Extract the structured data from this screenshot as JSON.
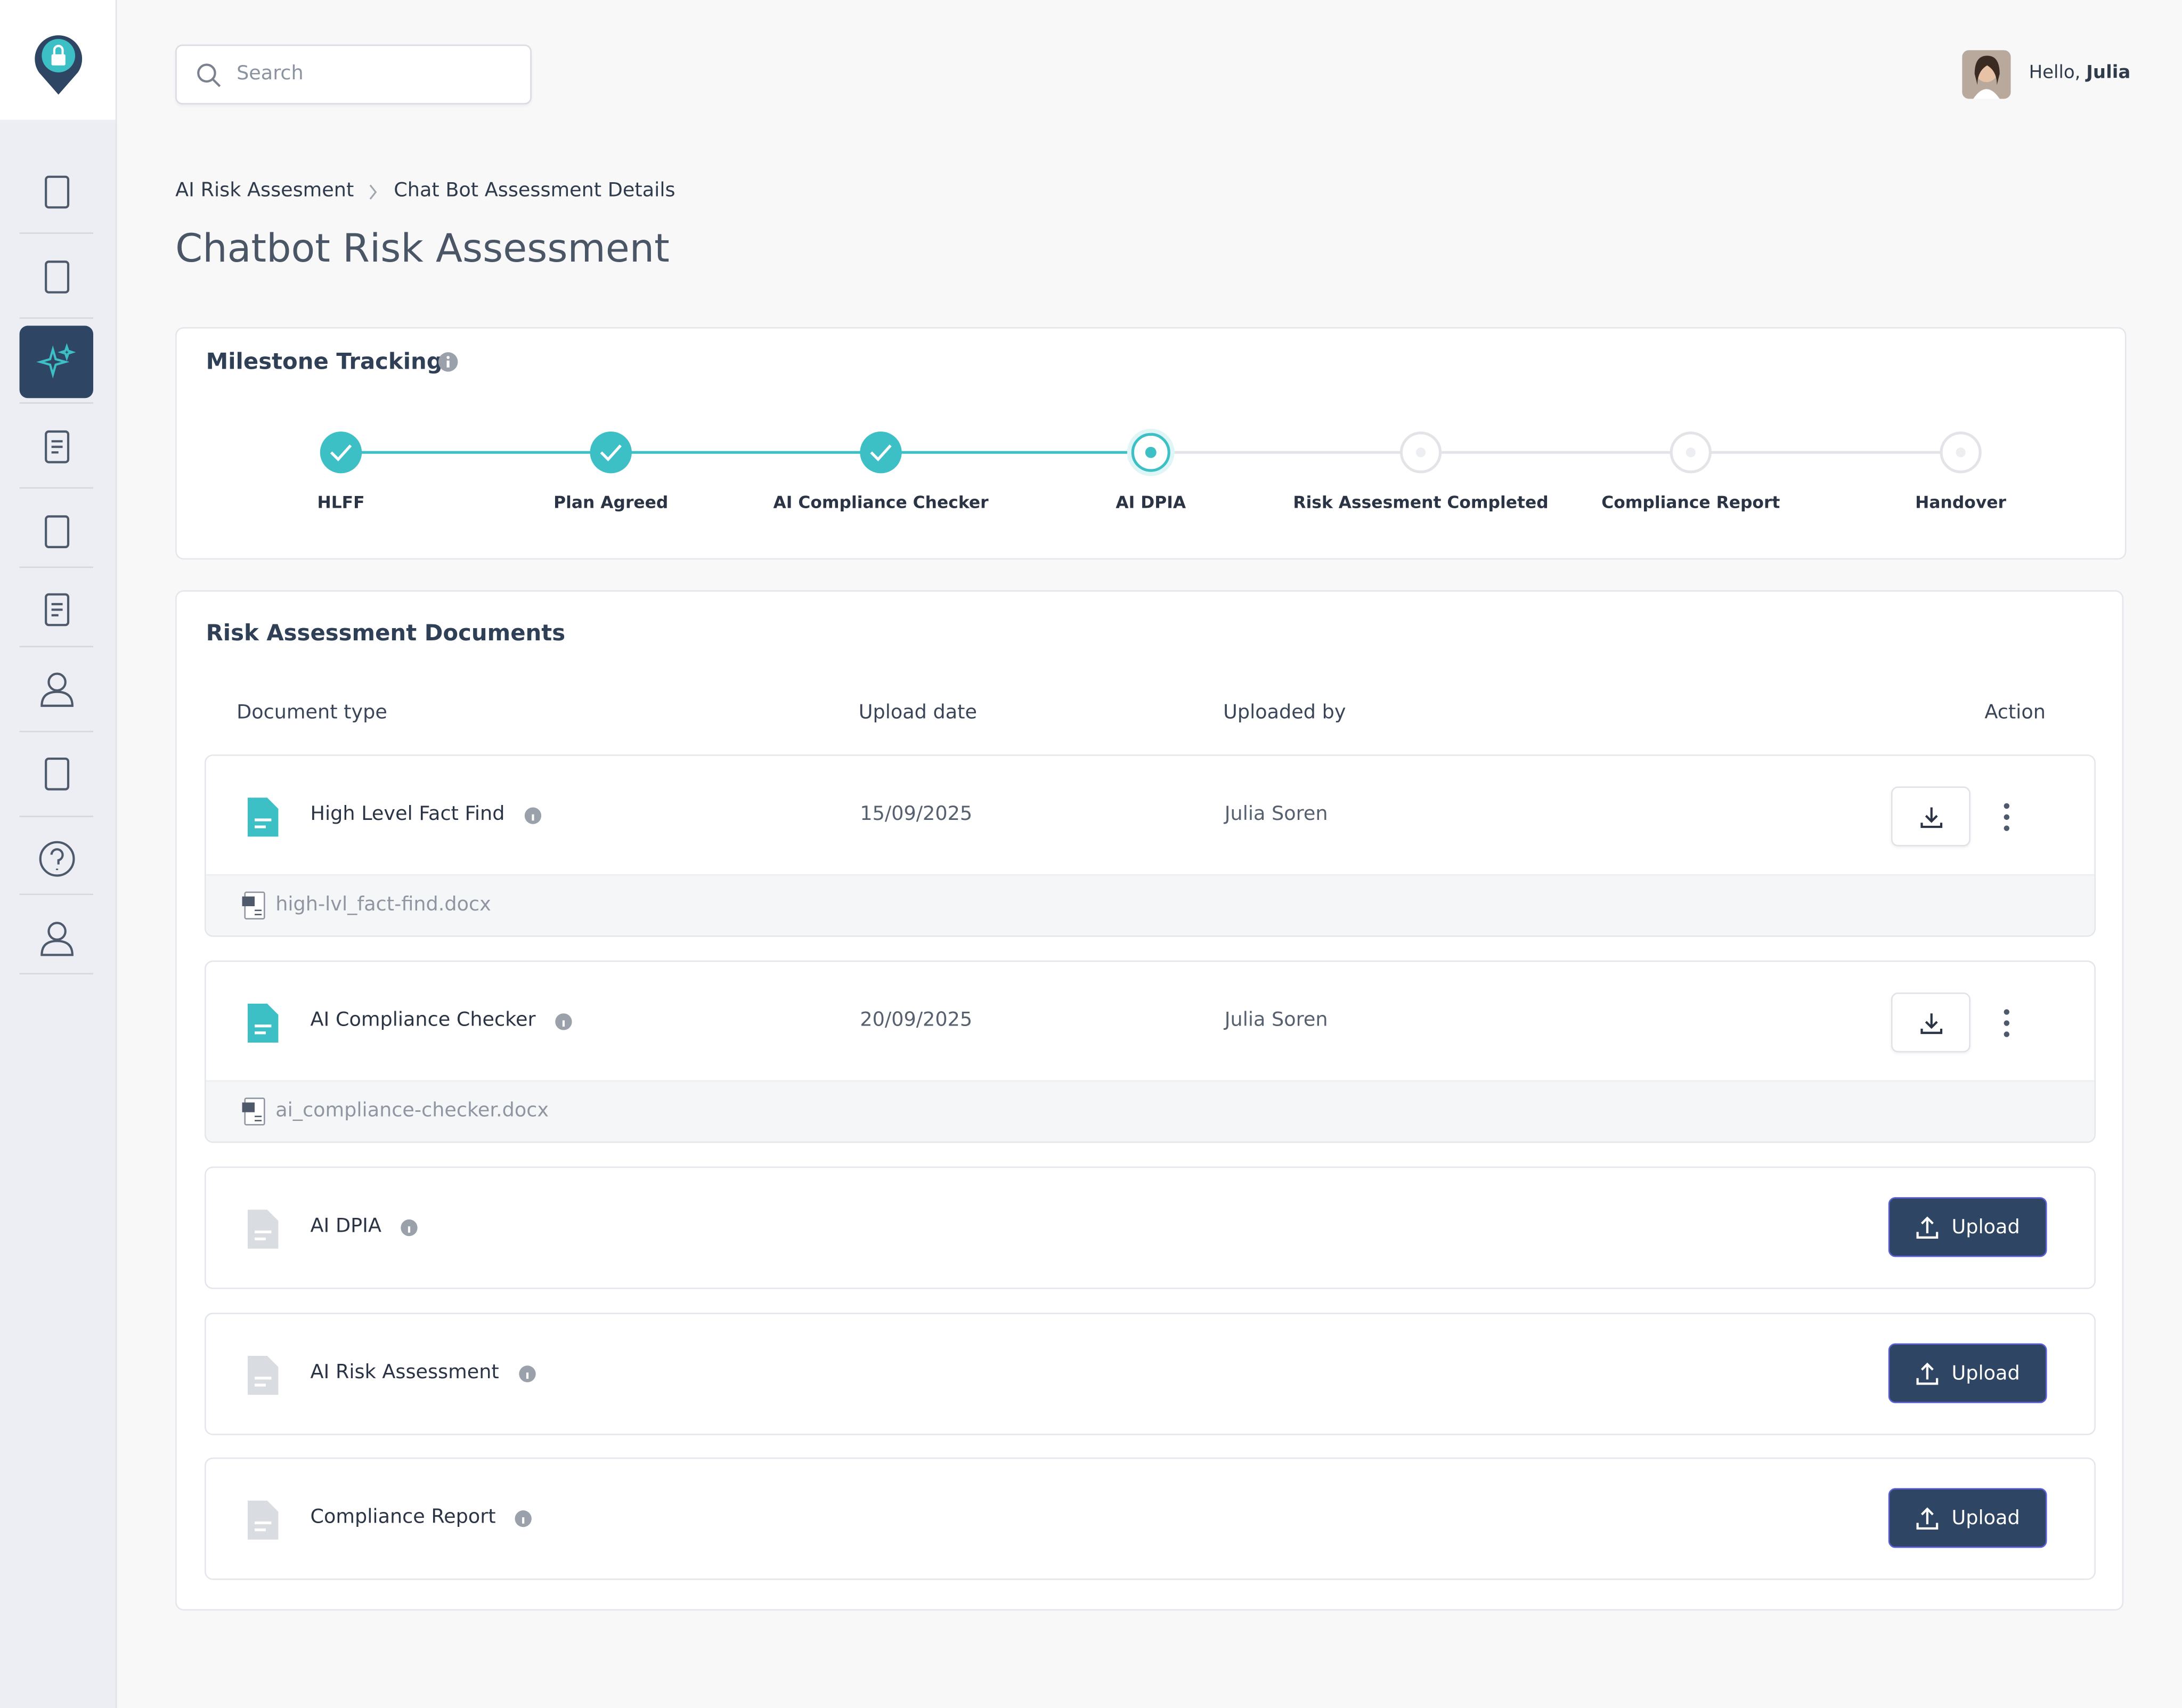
{
  "header": {
    "search_placeholder": "Search",
    "greeting": "Hello,",
    "user_name": "Julia"
  },
  "breadcrumb": [
    "AI Risk Assesment",
    "Chat Bot Assessment Details"
  ],
  "title": "Chatbot Risk Assessment",
  "milestones": {
    "title": "Milestone Tracking",
    "steps": [
      {
        "label": "HLFF",
        "status": "done"
      },
      {
        "label": "Plan Agreed",
        "status": "done"
      },
      {
        "label": "AI Compliance Checker",
        "status": "done"
      },
      {
        "label": "AI DPIA",
        "status": "current"
      },
      {
        "label": "Risk Assesment Completed",
        "status": "pending"
      },
      {
        "label": "Compliance Report",
        "status": "pending"
      },
      {
        "label": "Handover",
        "status": "pending"
      }
    ]
  },
  "documents": {
    "title": "Risk Assessment Documents",
    "columns": [
      "Document type",
      "Upload date",
      "Uploaded by",
      "Action"
    ],
    "rows": [
      {
        "type": "High Level Fact Find",
        "upload_date": "15/09/2025",
        "uploaded_by": "Julia Soren",
        "file": "high-lvl_fact-find.docx"
      },
      {
        "type": "AI Compliance Checker",
        "upload_date": "20/09/2025",
        "uploaded_by": "Julia Soren",
        "file": "ai_compliance-checker.docx"
      },
      {
        "type": "AI DPIA",
        "action": "Upload"
      },
      {
        "type": "AI Risk Assessment",
        "action": "Upload"
      },
      {
        "type": "Compliance Report",
        "action": "Upload"
      }
    ]
  }
}
